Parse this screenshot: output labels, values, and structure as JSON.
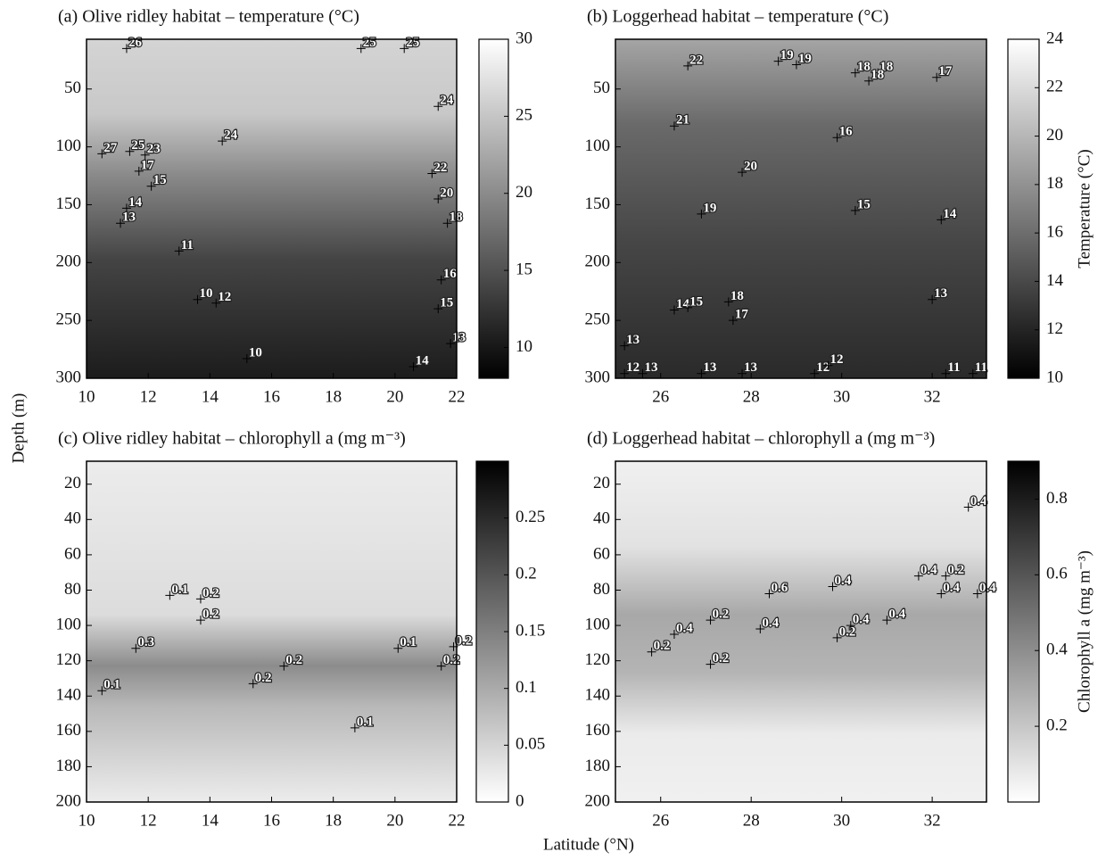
{
  "figure": {
    "xlabel": "Latitude (°N)",
    "ylabel": "Depth (m)"
  },
  "chart_data": [
    {
      "type": "contour",
      "title": "(a) Olive ridley habitat – temperature (°C)",
      "xlim": [
        10,
        22
      ],
      "xticks": [
        10,
        12,
        14,
        16,
        18,
        20,
        22
      ],
      "ylim": [
        7,
        300
      ],
      "yticks": [
        50,
        100,
        150,
        200,
        250,
        300
      ],
      "y_inverted": true,
      "colorbar": {
        "lim": [
          8,
          30
        ],
        "ticks": [
          10,
          15,
          20,
          25,
          30
        ],
        "colors": [
          "#000000",
          "#ffffff"
        ]
      },
      "contour_labels": [
        {
          "x": 11.3,
          "y": 15,
          "value": 26
        },
        {
          "x": 18.9,
          "y": 15,
          "value": 25
        },
        {
          "x": 20.3,
          "y": 15,
          "value": 25
        },
        {
          "x": 21.4,
          "y": 65,
          "value": 24
        },
        {
          "x": 14.4,
          "y": 95,
          "value": 24
        },
        {
          "x": 10.5,
          "y": 106,
          "value": 27
        },
        {
          "x": 11.4,
          "y": 104,
          "value": 25
        },
        {
          "x": 11.9,
          "y": 107,
          "value": 23
        },
        {
          "x": 11.7,
          "y": 121,
          "value": 17
        },
        {
          "x": 12.1,
          "y": 134,
          "value": 15
        },
        {
          "x": 11.3,
          "y": 153,
          "value": 14
        },
        {
          "x": 11.1,
          "y": 166,
          "value": 13
        },
        {
          "x": 13.0,
          "y": 190,
          "value": 11
        },
        {
          "x": 13.6,
          "y": 232,
          "value": 10
        },
        {
          "x": 14.2,
          "y": 235,
          "value": 12
        },
        {
          "x": 15.2,
          "y": 283,
          "value": 10
        },
        {
          "x": 21.2,
          "y": 123,
          "value": 22
        },
        {
          "x": 21.4,
          "y": 145,
          "value": 20
        },
        {
          "x": 21.7,
          "y": 166,
          "value": 18
        },
        {
          "x": 21.5,
          "y": 215,
          "value": 16
        },
        {
          "x": 21.4,
          "y": 240,
          "value": 15
        },
        {
          "x": 21.8,
          "y": 270,
          "value": 13
        },
        {
          "x": 20.6,
          "y": 290,
          "value": 14
        }
      ]
    },
    {
      "type": "contour",
      "title": "(b) Loggerhead habitat – temperature (°C)",
      "xlim": [
        25,
        33.2
      ],
      "xticks": [
        26,
        28,
        30,
        32
      ],
      "ylim": [
        7,
        300
      ],
      "yticks": [
        50,
        100,
        150,
        200,
        250,
        300
      ],
      "y_inverted": true,
      "colorbar": {
        "label": "Temperature (°C)",
        "lim": [
          10,
          24
        ],
        "ticks": [
          10,
          12,
          14,
          16,
          18,
          20,
          22,
          24
        ],
        "colors": [
          "#000000",
          "#ffffff"
        ]
      },
      "contour_labels": [
        {
          "x": 26.6,
          "y": 30,
          "value": 22
        },
        {
          "x": 28.6,
          "y": 26,
          "value": 19
        },
        {
          "x": 29.0,
          "y": 29,
          "value": 19
        },
        {
          "x": 30.3,
          "y": 36,
          "value": 18
        },
        {
          "x": 30.8,
          "y": 36,
          "value": 18
        },
        {
          "x": 30.6,
          "y": 43,
          "value": 18
        },
        {
          "x": 32.1,
          "y": 40,
          "value": 17
        },
        {
          "x": 26.3,
          "y": 82,
          "value": 21
        },
        {
          "x": 29.9,
          "y": 92,
          "value": 16
        },
        {
          "x": 27.8,
          "y": 122,
          "value": 20
        },
        {
          "x": 26.9,
          "y": 158,
          "value": 19
        },
        {
          "x": 30.3,
          "y": 155,
          "value": 15
        },
        {
          "x": 32.2,
          "y": 163,
          "value": 14
        },
        {
          "x": 32.0,
          "y": 232,
          "value": 13
        },
        {
          "x": 26.3,
          "y": 241,
          "value": 14
        },
        {
          "x": 26.6,
          "y": 239,
          "value": 15
        },
        {
          "x": 27.5,
          "y": 234,
          "value": 18
        },
        {
          "x": 27.6,
          "y": 250,
          "value": 17
        },
        {
          "x": 25.2,
          "y": 272,
          "value": 13
        },
        {
          "x": 25.2,
          "y": 296,
          "value": 12
        },
        {
          "x": 25.6,
          "y": 296,
          "value": 13
        },
        {
          "x": 26.9,
          "y": 296,
          "value": 13
        },
        {
          "x": 27.8,
          "y": 296,
          "value": 13
        },
        {
          "x": 29.4,
          "y": 296,
          "value": 12
        },
        {
          "x": 29.7,
          "y": 289,
          "value": 12
        },
        {
          "x": 32.3,
          "y": 296,
          "value": 11
        },
        {
          "x": 32.9,
          "y": 296,
          "value": 11
        }
      ]
    },
    {
      "type": "contour",
      "title": "(c) Olive ridley habitat – chlorophyll a (mg m⁻³)",
      "xlim": [
        10,
        22
      ],
      "xticks": [
        10,
        12,
        14,
        16,
        18,
        20,
        22
      ],
      "ylim": [
        7,
        200
      ],
      "yticks": [
        20,
        40,
        60,
        80,
        100,
        120,
        140,
        160,
        180,
        200
      ],
      "y_inverted": true,
      "colorbar": {
        "lim": [
          0,
          0.3
        ],
        "ticks": [
          0,
          0.05,
          0.1,
          0.15,
          0.2,
          0.25
        ],
        "colors": [
          "#ffffff",
          "#000000"
        ]
      },
      "contour_labels": [
        {
          "x": 12.7,
          "y": 83,
          "value": 0.1
        },
        {
          "x": 13.7,
          "y": 85,
          "value": 0.2
        },
        {
          "x": 13.7,
          "y": 97,
          "value": 0.2
        },
        {
          "x": 11.6,
          "y": 113,
          "value": 0.3
        },
        {
          "x": 10.5,
          "y": 137,
          "value": 0.1
        },
        {
          "x": 15.4,
          "y": 133,
          "value": 0.2
        },
        {
          "x": 16.4,
          "y": 123,
          "value": 0.2
        },
        {
          "x": 18.7,
          "y": 158,
          "value": 0.1
        },
        {
          "x": 20.1,
          "y": 113,
          "value": 0.1
        },
        {
          "x": 21.9,
          "y": 112,
          "value": 0.2
        },
        {
          "x": 21.5,
          "y": 123,
          "value": 0.2
        }
      ]
    },
    {
      "type": "contour",
      "title": "(d) Loggerhead habitat – chlorophyll a (mg m⁻³)",
      "xlim": [
        25,
        33.2
      ],
      "xticks": [
        26,
        28,
        30,
        32
      ],
      "ylim": [
        7,
        200
      ],
      "yticks": [
        20,
        40,
        60,
        80,
        100,
        120,
        140,
        160,
        180,
        200
      ],
      "y_inverted": true,
      "colorbar": {
        "label": "Chlorophyll a (mg m⁻³)",
        "lim": [
          0,
          0.9
        ],
        "ticks": [
          0.2,
          0.4,
          0.6,
          0.8
        ],
        "colors": [
          "#ffffff",
          "#000000"
        ]
      },
      "contour_labels": [
        {
          "x": 32.8,
          "y": 33,
          "value": 0.4
        },
        {
          "x": 31.7,
          "y": 72,
          "value": 0.4
        },
        {
          "x": 32.3,
          "y": 72,
          "value": 0.2
        },
        {
          "x": 32.2,
          "y": 82,
          "value": 0.4
        },
        {
          "x": 33.0,
          "y": 82,
          "value": 0.4
        },
        {
          "x": 28.4,
          "y": 82,
          "value": 0.6
        },
        {
          "x": 29.8,
          "y": 78,
          "value": 0.4
        },
        {
          "x": 28.2,
          "y": 102,
          "value": 0.4
        },
        {
          "x": 27.1,
          "y": 97,
          "value": 0.2
        },
        {
          "x": 26.3,
          "y": 105,
          "value": 0.4
        },
        {
          "x": 25.8,
          "y": 115,
          "value": 0.2
        },
        {
          "x": 27.1,
          "y": 122,
          "value": 0.2
        },
        {
          "x": 29.9,
          "y": 107,
          "value": 0.2
        },
        {
          "x": 30.2,
          "y": 100,
          "value": 0.4
        },
        {
          "x": 31.0,
          "y": 97,
          "value": 0.4
        }
      ]
    }
  ]
}
